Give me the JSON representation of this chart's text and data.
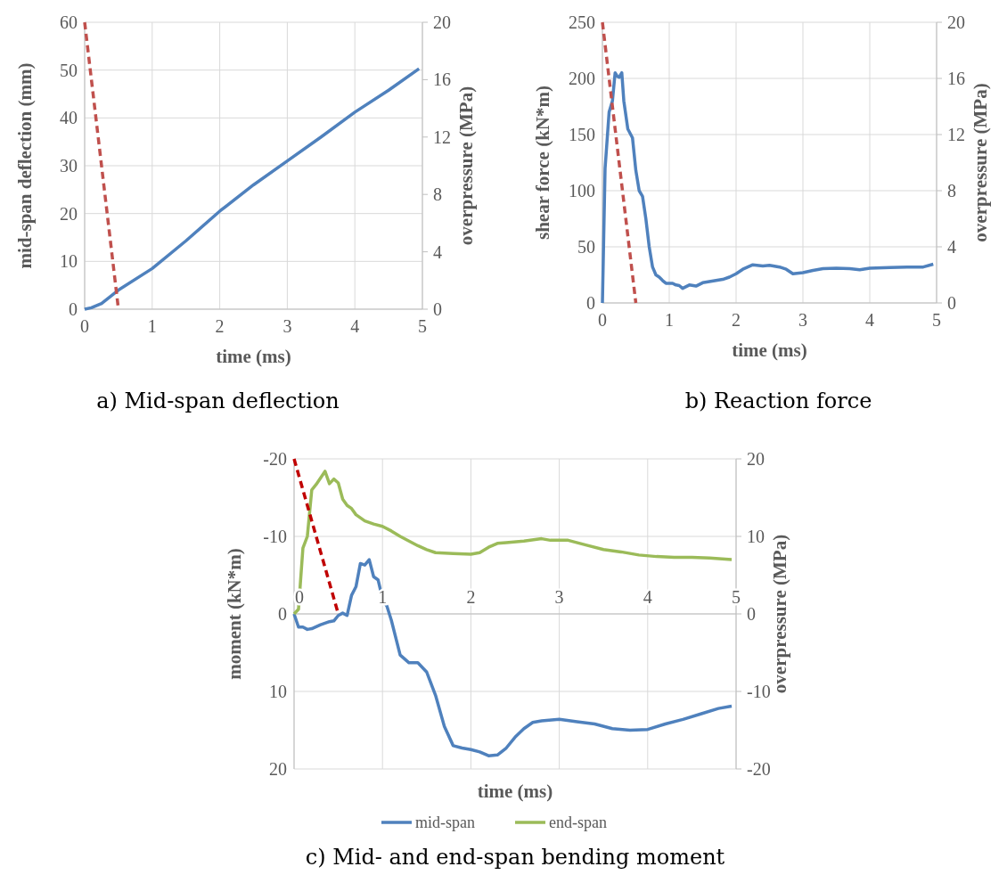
{
  "chart_data": [
    {
      "type": "line",
      "title": "a) Mid-span deflection",
      "xlabel": "time (ms)",
      "ylabel": "mid-span deflection (mm)",
      "y2label": "overpressure (MPa)",
      "xlim": [
        0,
        5
      ],
      "xticks": [
        0,
        1,
        2,
        3,
        4,
        5
      ],
      "ylim": [
        0,
        60
      ],
      "yticks": [
        0,
        10,
        20,
        30,
        40,
        50,
        60
      ],
      "y2lim": [
        0,
        20
      ],
      "y2ticks": [
        0,
        4,
        8,
        12,
        16,
        20
      ],
      "grid": true,
      "legend": false,
      "series": [
        {
          "color": "#4f81bd",
          "line_style": "solid",
          "x": [
            0,
            0.1,
            0.25,
            0.5,
            1,
            1.5,
            2,
            2.5,
            3,
            3.5,
            4,
            4.5,
            4.95
          ],
          "values": [
            0,
            0.3,
            1.2,
            4,
            8.5,
            14.3,
            20.5,
            26,
            31,
            36,
            41.2,
            45.8,
            50.3
          ]
        },
        {
          "color": "#c0504d",
          "axis": "y2",
          "line_style": "dashed",
          "x": [
            0,
            0.5
          ],
          "values": [
            20,
            0
          ]
        }
      ]
    },
    {
      "type": "line",
      "title": "b) Reaction force",
      "xlabel": "time (ms)",
      "ylabel": "shear force (kN*m)",
      "y2label": "overpressure (MPa)",
      "xlim": [
        0,
        5
      ],
      "xticks": [
        0,
        1,
        2,
        3,
        4,
        5
      ],
      "ylim": [
        0,
        250
      ],
      "yticks": [
        0,
        50,
        100,
        150,
        200,
        250
      ],
      "y2lim": [
        0,
        20
      ],
      "y2ticks": [
        0,
        4,
        8,
        12,
        16,
        20
      ],
      "grid": true,
      "legend": false,
      "series": [
        {
          "color": "#4f81bd",
          "line_style": "solid",
          "x": [
            0,
            0.02,
            0.04,
            0.1,
            0.15,
            0.19,
            0.22,
            0.25,
            0.29,
            0.32,
            0.38,
            0.45,
            0.5,
            0.55,
            0.6,
            0.65,
            0.7,
            0.75,
            0.8,
            0.85,
            0.9,
            0.95,
            1.05,
            1.1,
            1.15,
            1.2,
            1.3,
            1.4,
            1.5,
            1.6,
            1.7,
            1.8,
            1.9,
            2.0,
            2.1,
            2.25,
            2.4,
            2.5,
            2.65,
            2.75,
            2.85,
            3.0,
            3.15,
            3.3,
            3.5,
            3.7,
            3.85,
            4.0,
            4.3,
            4.6,
            4.8,
            4.95
          ],
          "values": [
            0,
            60,
            120,
            170,
            180,
            205,
            202,
            201,
            205,
            180,
            155,
            147,
            118,
            100,
            95,
            75,
            50,
            32,
            25,
            23,
            20,
            17.5,
            17.5,
            16,
            15.5,
            13,
            16,
            15,
            18,
            19,
            20,
            21,
            23,
            26,
            30,
            34,
            33,
            33.5,
            32,
            30,
            26,
            27,
            29,
            30.5,
            31,
            30.5,
            29.5,
            31,
            31.5,
            32,
            32,
            34.5
          ]
        },
        {
          "color": "#c0504d",
          "axis": "y2",
          "line_style": "dashed",
          "x": [
            0,
            0.5
          ],
          "values": [
            20,
            0
          ]
        }
      ]
    },
    {
      "type": "line",
      "title": "c) Mid- and end-span bending moment",
      "xlabel": "time (ms)",
      "ylabel": "moment (kN*m)",
      "y2label": "overpressure (MPa)",
      "xlim": [
        0,
        5
      ],
      "xticks": [
        0,
        1,
        2,
        3,
        4,
        5
      ],
      "ylim": [
        20,
        -20
      ],
      "yticks": [
        -20,
        -10,
        0,
        10,
        20
      ],
      "y2lim": [
        -20,
        20
      ],
      "y2ticks": [
        -20,
        -10,
        0,
        10,
        20
      ],
      "grid": true,
      "legend": "bottom",
      "series": [
        {
          "name": "mid-span",
          "color": "#4f81bd",
          "line_style": "solid",
          "x": [
            0,
            0.05,
            0.1,
            0.15,
            0.2,
            0.3,
            0.4,
            0.45,
            0.5,
            0.55,
            0.6,
            0.65,
            0.7,
            0.75,
            0.8,
            0.85,
            0.9,
            0.95,
            1.0,
            1.05,
            1.1,
            1.2,
            1.3,
            1.4,
            1.5,
            1.6,
            1.7,
            1.8,
            1.9,
            2.0,
            2.1,
            2.2,
            2.3,
            2.4,
            2.5,
            2.6,
            2.7,
            2.8,
            3.0,
            3.2,
            3.4,
            3.6,
            3.8,
            4.0,
            4.2,
            4.4,
            4.6,
            4.8,
            4.95
          ],
          "values": [
            0,
            1.7,
            1.7,
            2,
            1.9,
            1.4,
            1,
            0.9,
            0.2,
            -0.1,
            0.2,
            -2.4,
            -3.5,
            -6.5,
            -6.3,
            -7,
            -4.8,
            -4.4,
            -2,
            -1,
            0.8,
            5.3,
            6.3,
            6.3,
            7.5,
            10.5,
            14.5,
            17,
            17.3,
            17.5,
            17.8,
            18.3,
            18.2,
            17.3,
            15.9,
            14.8,
            14,
            13.8,
            13.6,
            13.9,
            14.2,
            14.8,
            15,
            14.9,
            14.2,
            13.6,
            12.9,
            12.2,
            11.9
          ]
        },
        {
          "name": "end-span",
          "color": "#9bbb59",
          "line_style": "solid",
          "x": [
            0,
            0.05,
            0.1,
            0.15,
            0.2,
            0.25,
            0.35,
            0.4,
            0.45,
            0.5,
            0.55,
            0.6,
            0.65,
            0.7,
            0.8,
            0.9,
            1.0,
            1.1,
            1.2,
            1.3,
            1.4,
            1.5,
            1.6,
            1.8,
            2.0,
            2.1,
            2.2,
            2.3,
            2.4,
            2.6,
            2.8,
            2.9,
            3.1,
            3.3,
            3.5,
            3.7,
            3.9,
            4.1,
            4.3,
            4.5,
            4.7,
            4.95
          ],
          "values": [
            0,
            -0.6,
            -8.5,
            -10,
            -16,
            -16.7,
            -18.4,
            -16.8,
            -17.4,
            -16.9,
            -14.8,
            -14,
            -13.6,
            -12.8,
            -12,
            -11.6,
            -11.3,
            -10.7,
            -10,
            -9.4,
            -8.8,
            -8.3,
            -7.9,
            -7.8,
            -7.7,
            -7.9,
            -8.6,
            -9.1,
            -9.2,
            -9.4,
            -9.7,
            -9.5,
            -9.5,
            -8.9,
            -8.3,
            -8,
            -7.6,
            -7.4,
            -7.3,
            -7.3,
            -7.2,
            -7
          ]
        },
        {
          "color": "#c00000",
          "axis": "y2",
          "line_style": "dashed",
          "x": [
            0,
            0.5
          ],
          "values": [
            20,
            0
          ]
        }
      ]
    }
  ]
}
